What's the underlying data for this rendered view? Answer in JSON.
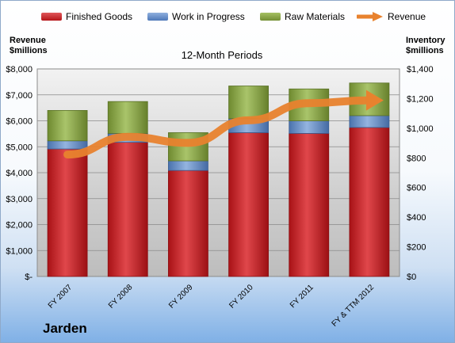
{
  "chart_data": {
    "type": "bar",
    "stacked": true,
    "categories": [
      "FY 2007",
      "FY 2008",
      "FY 2009",
      "FY 2010",
      "FY 2011",
      "FY & TTM 2012"
    ],
    "title": "12-Month Periods",
    "company": "Jarden",
    "left_axis": {
      "label_line1": "Revenue",
      "label_line2": "$millions",
      "ylim": [
        0,
        8000
      ],
      "ticks": [
        "$-",
        "$1,000",
        "$2,000",
        "$3,000",
        "$4,000",
        "$5,000",
        "$6,000",
        "$7,000",
        "$8,000"
      ]
    },
    "right_axis": {
      "label_line1": "Inventory",
      "label_line2": "$millions",
      "ylim": [
        0,
        1400
      ],
      "ticks": [
        "$0",
        "$200",
        "$400",
        "$600",
        "$800",
        "$1,000",
        "$1,200",
        "$1,400"
      ]
    },
    "series": [
      {
        "name": "Finished Goods",
        "axis": "right",
        "color": "#c0191e",
        "values": [
          860,
          905,
          715,
          970,
          965,
          1005
        ]
      },
      {
        "name": "Work in Progress",
        "axis": "right",
        "color": "#5b86c4",
        "values": [
          55,
          60,
          65,
          95,
          85,
          80
        ]
      },
      {
        "name": "Raw Materials",
        "axis": "right",
        "color": "#7e9c3c",
        "values": [
          205,
          215,
          190,
          220,
          215,
          220
        ]
      }
    ],
    "line_series": {
      "name": "Revenue",
      "axis": "left",
      "color": "#e8822e",
      "values": [
        4700,
        5380,
        5150,
        6020,
        6680,
        6790
      ]
    },
    "grid": true,
    "legend_position": "top"
  }
}
